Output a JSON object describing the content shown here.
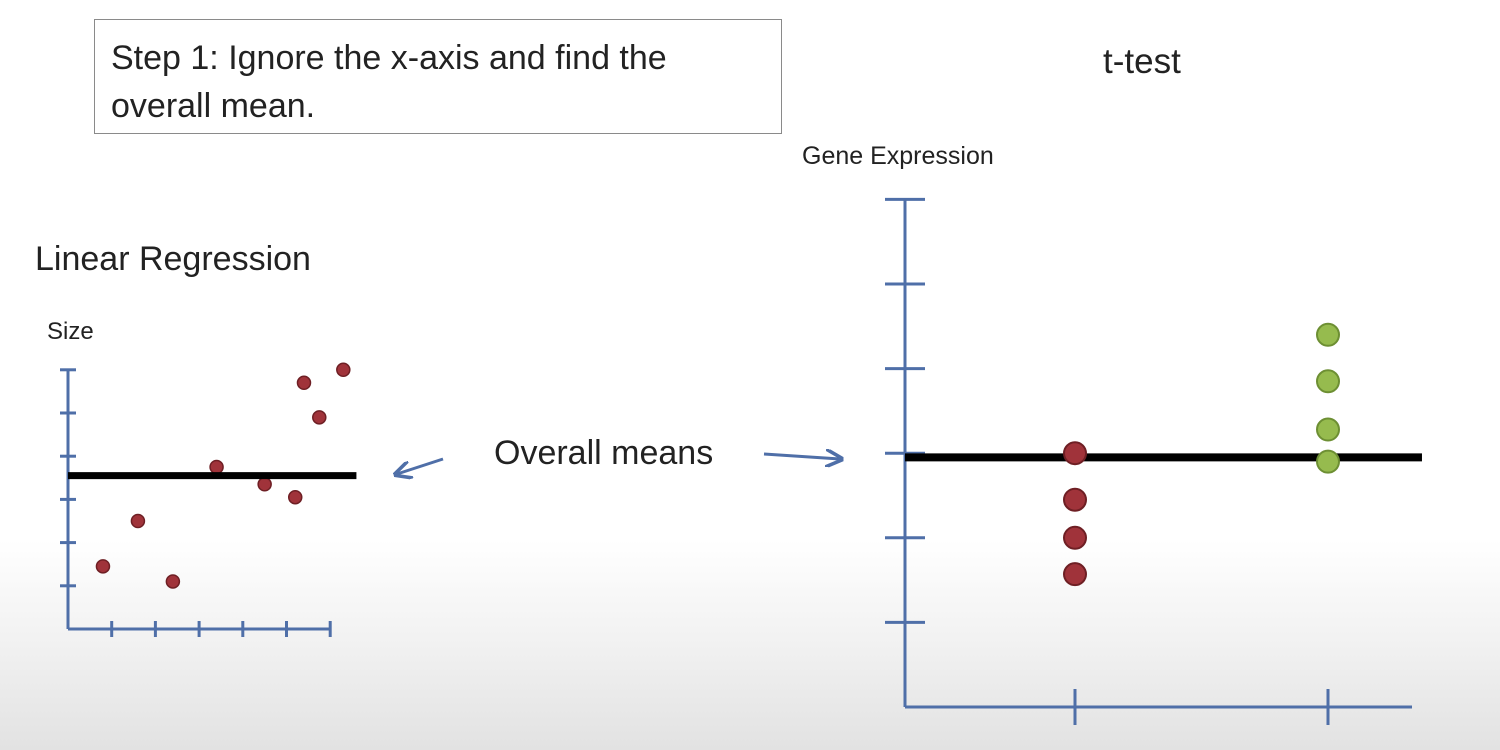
{
  "step_box": {
    "text": "Step 1: Ignore the x-axis and find the overall mean."
  },
  "linear_regression": {
    "title": "Linear Regression",
    "ylabel": "Size"
  },
  "ttest": {
    "title": "t-test",
    "ylabel": "Gene Expression"
  },
  "annotation": {
    "text": "Overall means"
  },
  "colors": {
    "axis": "#4f6fa8",
    "mean_line": "#000000",
    "red_point": "#a0333a",
    "red_point_stroke": "#6e1f24",
    "green_point": "#96bb4e",
    "green_point_stroke": "#6d8f33",
    "arrow": "#4f6fa8"
  },
  "chart_data": [
    {
      "type": "scatter",
      "title": "Linear Regression",
      "ylabel": "Size",
      "xlabel": "",
      "xlim": [
        0,
        6
      ],
      "ylim": [
        0,
        6
      ],
      "x_ticks": 6,
      "y_ticks": 6,
      "points": [
        {
          "x": 0.8,
          "y": 1.45
        },
        {
          "x": 1.6,
          "y": 2.5
        },
        {
          "x": 2.4,
          "y": 1.1
        },
        {
          "x": 3.4,
          "y": 3.75
        },
        {
          "x": 4.5,
          "y": 3.35
        },
        {
          "x": 5.2,
          "y": 3.05
        },
        {
          "x": 5.4,
          "y": 5.7
        },
        {
          "x": 5.75,
          "y": 4.9
        },
        {
          "x": 6.3,
          "y": 6.0
        }
      ],
      "mean_line": {
        "y": 3.55,
        "x_start": 0,
        "x_end": 6.6
      }
    },
    {
      "type": "scatter",
      "title": "t-test",
      "ylabel": "Gene Expression",
      "xlabel": "",
      "xlim": [
        0,
        3
      ],
      "ylim": [
        0,
        6
      ],
      "x_ticks": 2,
      "y_ticks": 6,
      "groups": [
        {
          "x": 1,
          "color": "red",
          "values": [
            3.0,
            2.45,
            2.0,
            1.57
          ]
        },
        {
          "x": 2,
          "color": "green",
          "values": [
            4.4,
            3.85,
            3.28,
            2.9
          ]
        }
      ],
      "mean_line": {
        "y": 2.95,
        "x_start": 0,
        "x_end": 3.05
      }
    }
  ]
}
